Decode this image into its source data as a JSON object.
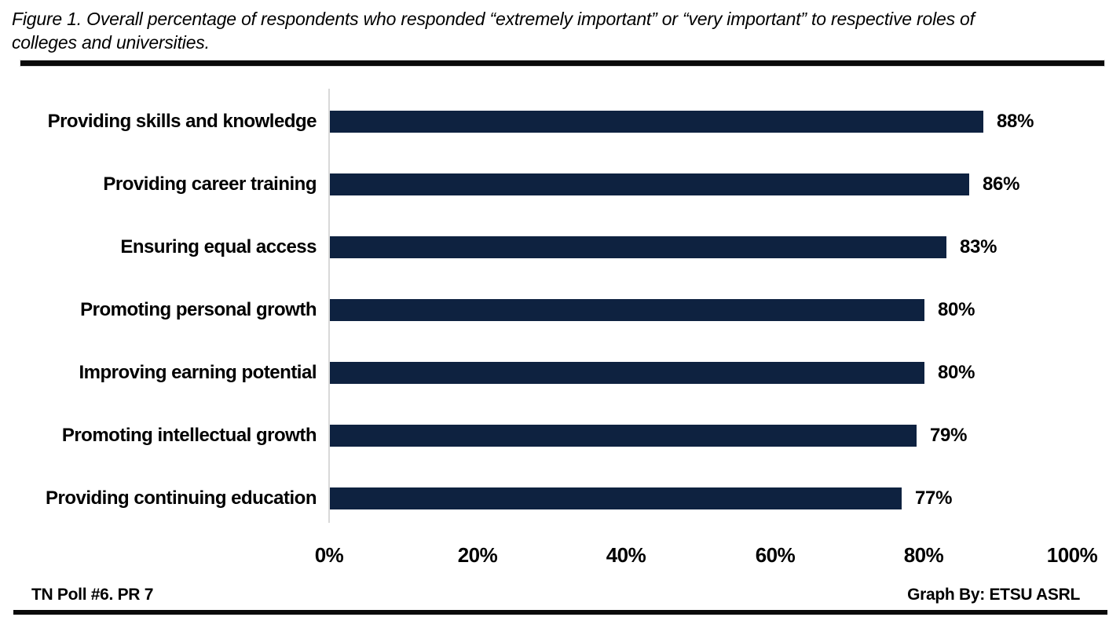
{
  "title": {
    "line1": "Figure 1. Overall percentage of respondents who responded “extremely important” or “very important” to respective roles of",
    "line2": "colleges and universities."
  },
  "chart_data": {
    "type": "bar",
    "orientation": "horizontal",
    "title": "Figure 1. Overall percentage of respondents who responded “extremely important” or “very important” to respective roles of colleges and universities.",
    "categories": [
      "Providing skills and knowledge",
      "Providing career training",
      "Ensuring equal access",
      "Promoting personal growth",
      "Improving earning potential",
      "Promoting intellectual growth",
      "Providing continuing education"
    ],
    "values": [
      88,
      86,
      83,
      80,
      80,
      79,
      77
    ],
    "value_labels": [
      "88%",
      "86%",
      "83%",
      "80%",
      "80%",
      "79%",
      "77%"
    ],
    "xlabel": "",
    "ylabel": "",
    "xlim": [
      0,
      100
    ],
    "x_ticks": [
      "0%",
      "20%",
      "40%",
      "60%",
      "80%",
      "100%"
    ],
    "x_tick_values": [
      0,
      20,
      40,
      60,
      80,
      100
    ],
    "grid": false,
    "legend": false,
    "bar_color": "#0e2240",
    "axis_line_color": "#d9d9d9",
    "text_color": "#000000"
  },
  "footer": {
    "left": "TN Poll #6. PR 7",
    "right": "Graph By: ETSU ASRL"
  }
}
